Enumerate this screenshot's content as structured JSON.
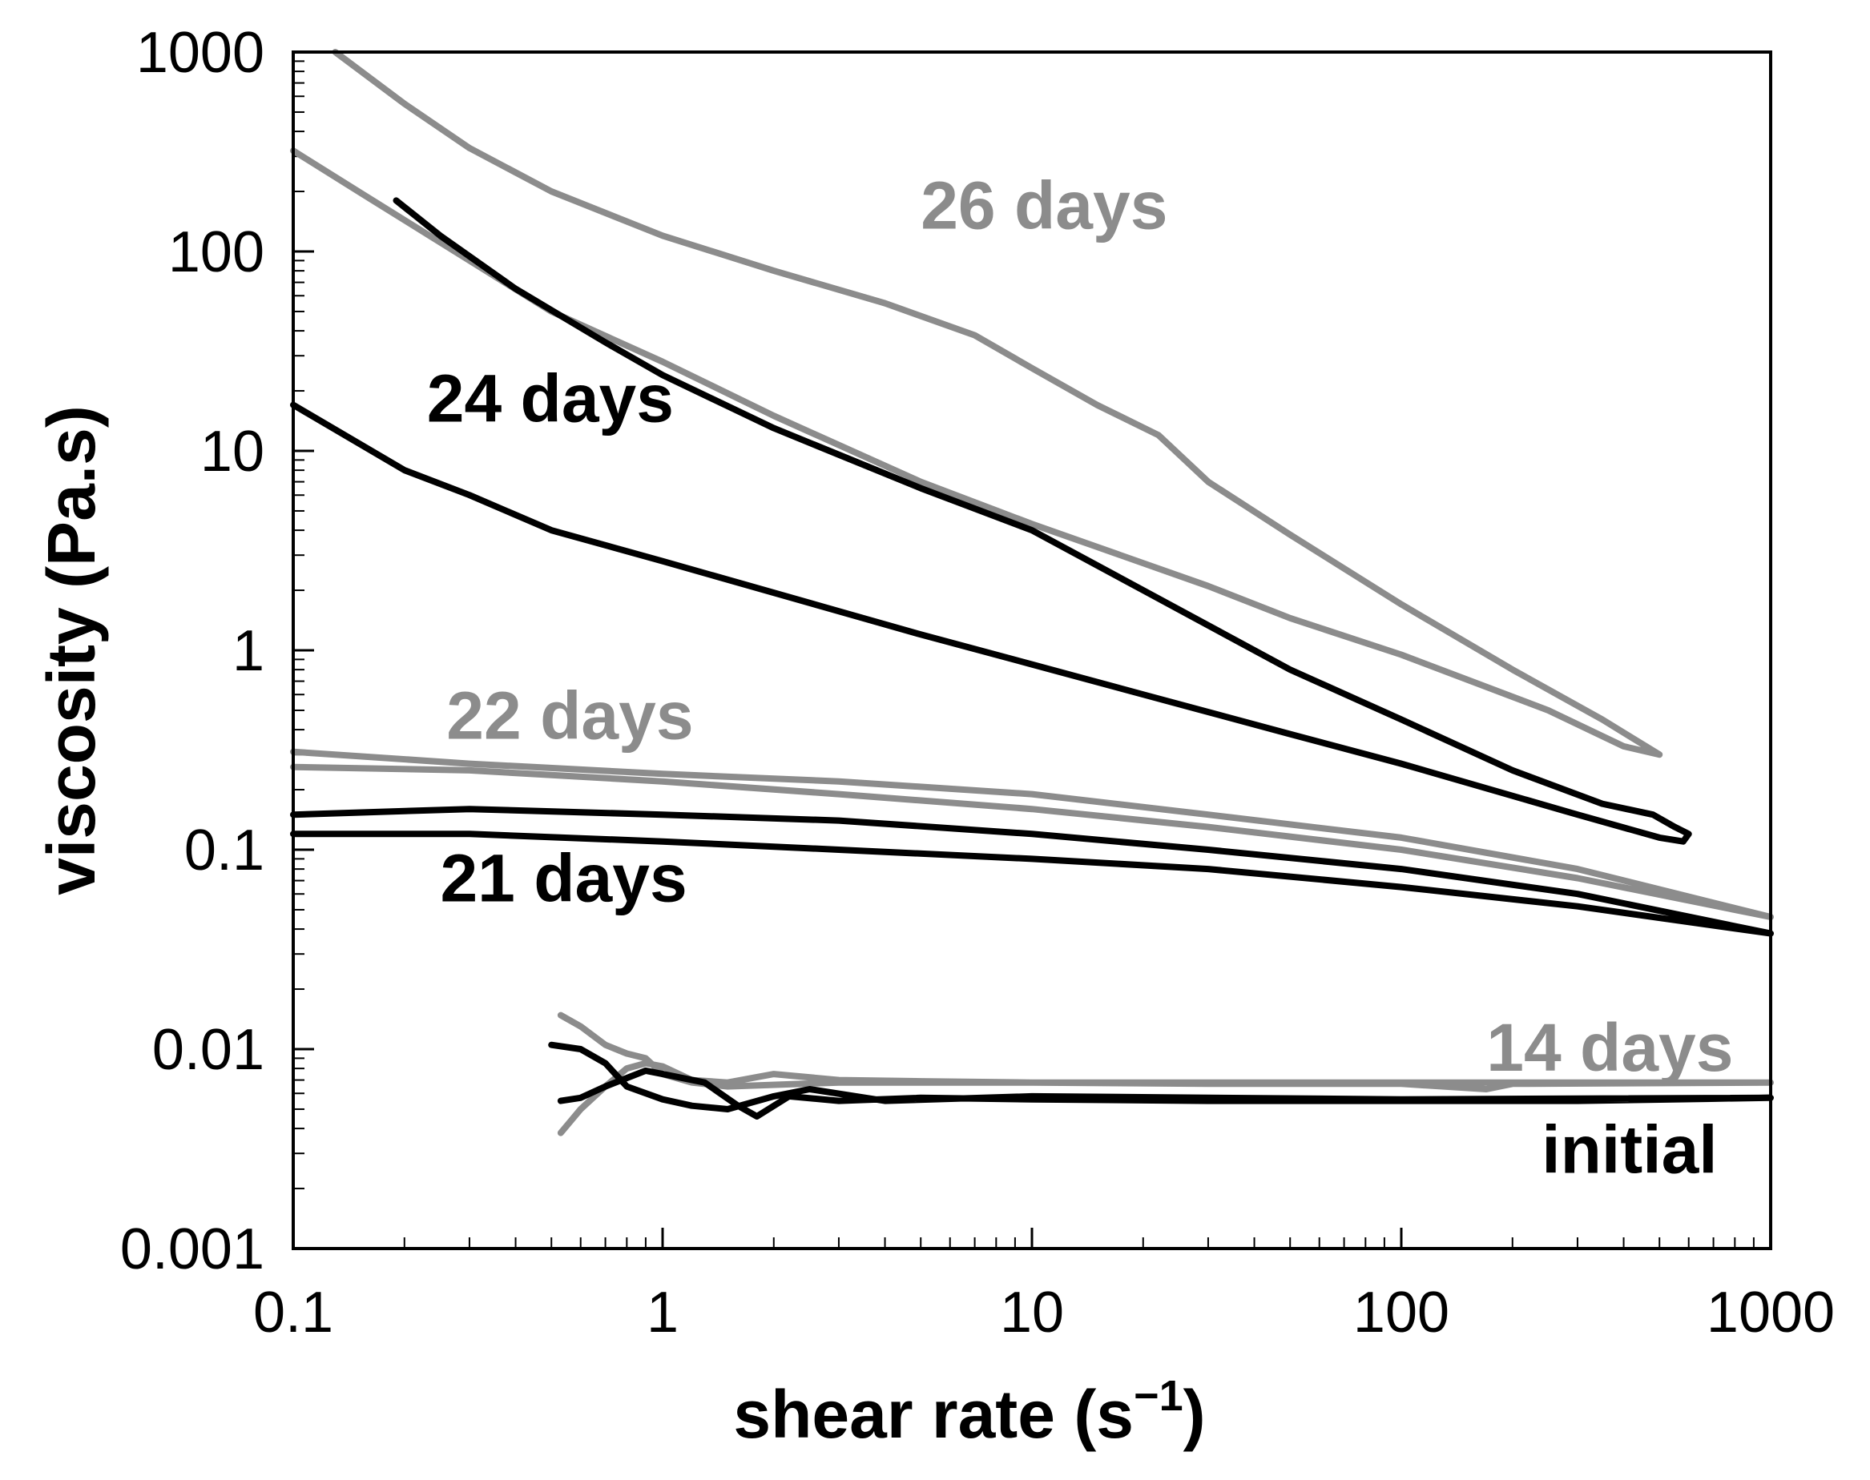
{
  "chart_data": {
    "type": "line",
    "title": "",
    "xlabel": "shear rate (s",
    "xlabel_superscript": "−1",
    "xlabel_suffix": ")",
    "ylabel": "viscosity (Pa.s)",
    "xscale": "log",
    "yscale": "log",
    "xlim": [
      0.1,
      1000
    ],
    "ylim": [
      0.001,
      1000
    ],
    "x_ticks": [
      "0.1",
      "1",
      "10",
      "100",
      "1000"
    ],
    "y_ticks": [
      "0.001",
      "0.01",
      "0.1",
      "1",
      "10",
      "100",
      "1000"
    ],
    "grid": false,
    "colors": {
      "black": "#000000",
      "gray": "#8c8c8c"
    },
    "series": [
      {
        "name": "26 days",
        "color": "gray",
        "points": [
          [
            0.13,
            1000
          ],
          [
            0.2,
            550
          ],
          [
            0.3,
            330
          ],
          [
            0.5,
            200
          ],
          [
            1,
            120
          ],
          [
            2,
            80
          ],
          [
            4,
            55
          ],
          [
            7,
            38
          ],
          [
            10,
            26
          ],
          [
            15,
            17
          ],
          [
            22,
            12
          ],
          [
            30,
            7
          ],
          [
            50,
            3.8
          ],
          [
            100,
            1.7
          ],
          [
            200,
            0.8
          ],
          [
            350,
            0.45
          ],
          [
            500,
            0.3
          ],
          [
            400,
            0.33
          ],
          [
            250,
            0.5
          ],
          [
            100,
            0.95
          ],
          [
            50,
            1.45
          ],
          [
            30,
            2.1
          ],
          [
            15,
            3.3
          ],
          [
            10,
            4.3
          ],
          [
            5,
            7
          ],
          [
            2,
            15
          ],
          [
            1,
            28
          ],
          [
            0.5,
            50
          ],
          [
            0.3,
            90
          ],
          [
            0.15,
            200
          ],
          [
            0.1,
            320
          ]
        ]
      },
      {
        "name": "24 days",
        "color": "black",
        "points": [
          [
            0.19,
            180
          ],
          [
            0.25,
            120
          ],
          [
            0.4,
            65
          ],
          [
            0.7,
            35
          ],
          [
            1,
            24
          ],
          [
            2,
            13
          ],
          [
            5,
            6.5
          ],
          [
            10,
            4
          ],
          [
            20,
            2
          ],
          [
            50,
            0.8
          ],
          [
            100,
            0.45
          ],
          [
            200,
            0.25
          ],
          [
            350,
            0.17
          ],
          [
            480,
            0.15
          ],
          [
            550,
            0.13
          ],
          [
            600,
            0.12
          ],
          [
            580,
            0.11
          ],
          [
            500,
            0.115
          ],
          [
            300,
            0.15
          ],
          [
            100,
            0.27
          ],
          [
            50,
            0.38
          ],
          [
            20,
            0.6
          ],
          [
            10,
            0.85
          ],
          [
            5,
            1.2
          ],
          [
            1,
            2.8
          ],
          [
            0.5,
            4
          ],
          [
            0.3,
            6
          ],
          [
            0.2,
            8
          ],
          [
            0.1,
            17
          ]
        ]
      },
      {
        "name": "22 days",
        "color": "gray",
        "points": [
          [
            0.1,
            0.31
          ],
          [
            0.3,
            0.27
          ],
          [
            1,
            0.24
          ],
          [
            3,
            0.22
          ],
          [
            10,
            0.19
          ],
          [
            30,
            0.15
          ],
          [
            100,
            0.115
          ],
          [
            300,
            0.08
          ],
          [
            1000,
            0.046
          ],
          [
            300,
            0.072
          ],
          [
            100,
            0.1
          ],
          [
            30,
            0.13
          ],
          [
            10,
            0.16
          ],
          [
            3,
            0.19
          ],
          [
            1,
            0.22
          ],
          [
            0.3,
            0.25
          ],
          [
            0.1,
            0.26
          ]
        ]
      },
      {
        "name": "21 days",
        "color": "black",
        "points": [
          [
            0.1,
            0.15
          ],
          [
            0.3,
            0.16
          ],
          [
            1,
            0.15
          ],
          [
            3,
            0.14
          ],
          [
            10,
            0.12
          ],
          [
            30,
            0.1
          ],
          [
            100,
            0.08
          ],
          [
            300,
            0.06
          ],
          [
            1000,
            0.038
          ],
          [
            300,
            0.052
          ],
          [
            100,
            0.065
          ],
          [
            30,
            0.08
          ],
          [
            10,
            0.09
          ],
          [
            3,
            0.1
          ],
          [
            1,
            0.11
          ],
          [
            0.3,
            0.12
          ],
          [
            0.1,
            0.12
          ]
        ]
      },
      {
        "name": "14 days",
        "color": "gray",
        "points": [
          [
            0.53,
            0.0038
          ],
          [
            0.6,
            0.005
          ],
          [
            0.7,
            0.0065
          ],
          [
            0.8,
            0.008
          ],
          [
            0.9,
            0.0085
          ],
          [
            1,
            0.0082
          ],
          [
            1.2,
            0.007
          ],
          [
            1.5,
            0.0068
          ],
          [
            2,
            0.0075
          ],
          [
            3,
            0.007
          ],
          [
            5,
            0.0069
          ],
          [
            10,
            0.0068
          ],
          [
            30,
            0.0067
          ],
          [
            100,
            0.0067
          ],
          [
            170,
            0.0063
          ],
          [
            200,
            0.0067
          ],
          [
            1000,
            0.0068
          ],
          [
            100,
            0.0068
          ],
          [
            10,
            0.0068
          ],
          [
            3,
            0.0068
          ],
          [
            1.5,
            0.0065
          ],
          [
            1.2,
            0.0068
          ],
          [
            1,
            0.0075
          ],
          [
            0.9,
            0.009
          ],
          [
            0.8,
            0.0095
          ],
          [
            0.7,
            0.0105
          ],
          [
            0.6,
            0.013
          ],
          [
            0.53,
            0.0148
          ]
        ]
      },
      {
        "name": "initial",
        "color": "black",
        "points": [
          [
            0.53,
            0.0055
          ],
          [
            0.6,
            0.0057
          ],
          [
            0.7,
            0.0065
          ],
          [
            0.9,
            0.0078
          ],
          [
            1,
            0.0075
          ],
          [
            1.3,
            0.0068
          ],
          [
            1.6,
            0.0052
          ],
          [
            1.8,
            0.0046
          ],
          [
            2.2,
            0.0058
          ],
          [
            3,
            0.0055
          ],
          [
            5,
            0.0057
          ],
          [
            10,
            0.0056
          ],
          [
            30,
            0.0055
          ],
          [
            100,
            0.0055
          ],
          [
            300,
            0.0055
          ],
          [
            1000,
            0.0057
          ],
          [
            100,
            0.0056
          ],
          [
            10,
            0.0058
          ],
          [
            4,
            0.0055
          ],
          [
            2.5,
            0.0063
          ],
          [
            2,
            0.0058
          ],
          [
            1.5,
            0.005
          ],
          [
            1.2,
            0.0052
          ],
          [
            1,
            0.0056
          ],
          [
            0.8,
            0.0065
          ],
          [
            0.7,
            0.0085
          ],
          [
            0.6,
            0.01
          ],
          [
            0.5,
            0.0105
          ]
        ]
      }
    ],
    "annotations": [
      {
        "text": "26 days",
        "color": "gray",
        "x": 5,
        "y": 130
      },
      {
        "text": "24 days",
        "color": "black",
        "x": 0.23,
        "y": 14
      },
      {
        "text": "22 days",
        "color": "gray",
        "x": 0.26,
        "y": 0.36
      },
      {
        "text": "21 days",
        "color": "black",
        "x": 0.25,
        "y": 0.055
      },
      {
        "text": "14 days",
        "color": "gray",
        "x": 170,
        "y": 0.0078
      },
      {
        "text": "initial",
        "color": "black",
        "x": 240,
        "y": 0.0024
      }
    ]
  }
}
